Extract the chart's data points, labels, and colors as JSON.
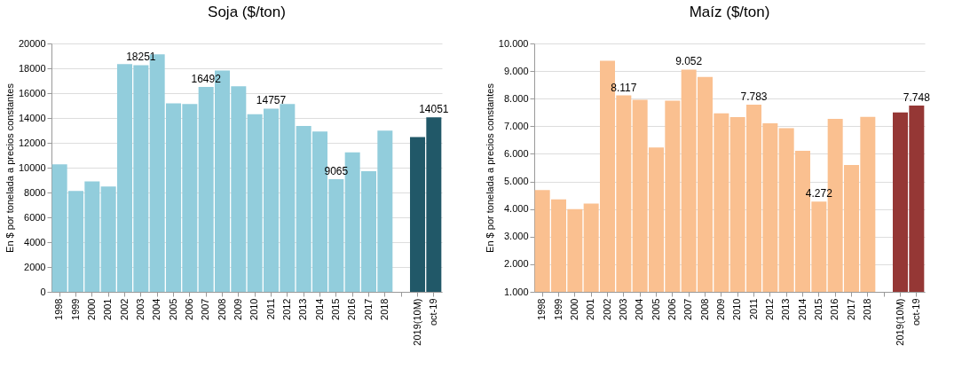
{
  "chart_data": [
    {
      "type": "bar",
      "title": "Soja ($/ton)",
      "ylabel": "En $ por tonelada a precios constantes",
      "categories": [
        "1998",
        "1999",
        "2000",
        "2001",
        "2002",
        "2003",
        "2004",
        "2005",
        "2006",
        "2007",
        "2008",
        "2009",
        "2010",
        "2011",
        "2012",
        "2013",
        "2014",
        "2015",
        "2016",
        "2017",
        "2018",
        null,
        "2019(10M)",
        "oct-19"
      ],
      "values": [
        10260,
        8130,
        8900,
        8480,
        18340,
        18251,
        19130,
        15170,
        15120,
        16492,
        17820,
        16560,
        14300,
        14757,
        15120,
        13360,
        12910,
        9065,
        11230,
        9720,
        12990,
        null,
        12470,
        14051
      ],
      "value_labels": [
        null,
        null,
        null,
        null,
        null,
        "18251",
        null,
        null,
        null,
        "16492",
        null,
        null,
        null,
        "14757",
        null,
        null,
        null,
        "9065",
        null,
        null,
        null,
        null,
        null,
        "14051"
      ],
      "colors": [
        "#92cddc",
        "#92cddc",
        "#92cddc",
        "#92cddc",
        "#92cddc",
        "#92cddc",
        "#92cddc",
        "#92cddc",
        "#92cddc",
        "#92cddc",
        "#92cddc",
        "#92cddc",
        "#92cddc",
        "#92cddc",
        "#92cddc",
        "#92cddc",
        "#92cddc",
        "#92cddc",
        "#92cddc",
        "#92cddc",
        "#92cddc",
        "#92cddc",
        "#215868",
        "#215868"
      ],
      "ylim": [
        0,
        20000
      ],
      "yticks": [
        0,
        2000,
        4000,
        6000,
        8000,
        10000,
        12000,
        14000,
        16000,
        18000,
        20000
      ],
      "grid": "y"
    },
    {
      "type": "bar",
      "title": "Maíz ($/ton)",
      "ylabel": "En $ por tonelada a precios constantes",
      "categories": [
        "1998",
        "1999",
        "2000",
        "2001",
        "2002",
        "2003",
        "2004",
        "2005",
        "2006",
        "2007",
        "2008",
        "2009",
        "2010",
        "2011",
        "2012",
        "2013",
        "2014",
        "2015",
        "2016",
        "2017",
        "2018",
        null,
        "2019(10M)",
        "oct-19"
      ],
      "values": [
        4690,
        4350,
        4000,
        4200,
        9370,
        8117,
        7960,
        6230,
        7930,
        9052,
        8790,
        7470,
        7330,
        7783,
        7110,
        6930,
        6110,
        4272,
        7270,
        5600,
        7340,
        null,
        7500,
        7748
      ],
      "value_labels": [
        null,
        null,
        null,
        null,
        null,
        "8.117",
        null,
        null,
        null,
        "9.052",
        null,
        null,
        null,
        "7.783",
        null,
        null,
        null,
        "4.272",
        null,
        null,
        null,
        null,
        null,
        "7.748"
      ],
      "colors": [
        "#fac090",
        "#fac090",
        "#fac090",
        "#fac090",
        "#fac090",
        "#fac090",
        "#fac090",
        "#fac090",
        "#fac090",
        "#fac090",
        "#fac090",
        "#fac090",
        "#fac090",
        "#fac090",
        "#fac090",
        "#fac090",
        "#fac090",
        "#fac090",
        "#fac090",
        "#fac090",
        "#fac090",
        "#fac090",
        "#953735",
        "#953735"
      ],
      "ylim": [
        1000,
        10000
      ],
      "yticks": [
        {
          "value": 1000,
          "label": "1.000"
        },
        {
          "value": 2000,
          "label": "2.000"
        },
        {
          "value": 3000,
          "label": "3.000"
        },
        {
          "value": 4000,
          "label": "4.000"
        },
        {
          "value": 5000,
          "label": "5.000"
        },
        {
          "value": 6000,
          "label": "6.000"
        },
        {
          "value": 7000,
          "label": "7.000"
        },
        {
          "value": 8000,
          "label": "8.000"
        },
        {
          "value": 9000,
          "label": "9.000"
        },
        {
          "value": 10000,
          "label": "10.000"
        }
      ],
      "grid": "y"
    }
  ]
}
